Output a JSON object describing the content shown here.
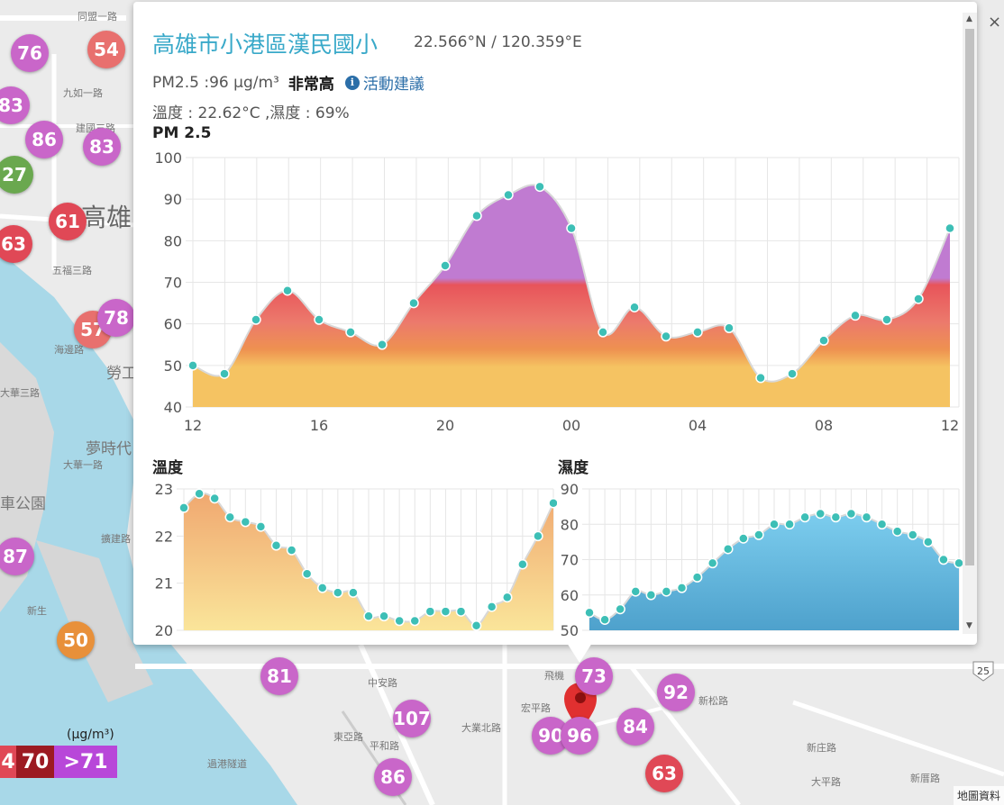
{
  "popup": {
    "station_name": "高雄市小港區漢民國小",
    "coords": "22.566°N / 120.359°E",
    "pm_text": "PM2.5 :96 μg/m³",
    "level": "非常高",
    "info_icon": "info-icon",
    "advice": "活動建議",
    "weather_text": "溫度 : 22.62°C ,濕度 : 69%",
    "close_label": "×"
  },
  "colors": {
    "accent": "#39a9c9",
    "link": "#2b6ea8",
    "pm_low": "#f5c362",
    "pm_mid": "#e8545a",
    "pm_high": "#c07bd1",
    "temp_fill": "#f0b56a",
    "humid_fill": "#5ab0db",
    "point": "#3dbfb6"
  },
  "chart_data": [
    {
      "type": "area",
      "title": "PM 2.5",
      "xlabel": "",
      "ylabel": "",
      "x_tick_labels": [
        "12",
        "16",
        "20",
        "00",
        "04",
        "08",
        "12"
      ],
      "ylim": [
        40,
        100
      ],
      "y_ticks": [
        40,
        50,
        60,
        70,
        80,
        90,
        100
      ],
      "grid": true,
      "x": [
        0,
        1,
        2,
        3,
        4,
        5,
        6,
        7,
        8,
        9,
        10,
        11,
        12,
        13,
        14,
        15,
        16,
        17,
        18,
        19,
        20,
        21,
        22,
        23,
        24
      ],
      "values": [
        50,
        48,
        61,
        68,
        61,
        58,
        55,
        65,
        74,
        86,
        91,
        93,
        83,
        58,
        64,
        57,
        58,
        59,
        47,
        48,
        56,
        62,
        61,
        66,
        83
      ]
    },
    {
      "type": "area",
      "title": "溫度",
      "ylim": [
        20,
        23
      ],
      "y_ticks": [
        20,
        21,
        22,
        23
      ],
      "grid": true,
      "x": [
        0,
        1,
        2,
        3,
        4,
        5,
        6,
        7,
        8,
        9,
        10,
        11,
        12,
        13,
        14,
        15,
        16,
        17,
        18,
        19,
        20,
        21,
        22,
        23,
        24
      ],
      "values": [
        22.6,
        22.9,
        22.8,
        22.4,
        22.3,
        22.2,
        21.8,
        21.7,
        21.2,
        20.9,
        20.8,
        20.8,
        20.3,
        20.3,
        20.2,
        20.2,
        20.4,
        20.4,
        20.4,
        20.1,
        20.5,
        20.7,
        21.4,
        22.0,
        22.7
      ]
    },
    {
      "type": "area",
      "title": "濕度",
      "ylim": [
        50,
        90
      ],
      "y_ticks": [
        50,
        60,
        70,
        80,
        90
      ],
      "grid": true,
      "x": [
        0,
        1,
        2,
        3,
        4,
        5,
        6,
        7,
        8,
        9,
        10,
        11,
        12,
        13,
        14,
        15,
        16,
        17,
        18,
        19,
        20,
        21,
        22,
        23,
        24
      ],
      "values": [
        55,
        53,
        56,
        61,
        60,
        61,
        62,
        65,
        69,
        73,
        76,
        77,
        80,
        80,
        82,
        83,
        82,
        83,
        82,
        80,
        78,
        77,
        75,
        70,
        69
      ]
    }
  ],
  "map": {
    "markers": [
      {
        "value": "76",
        "color": "#c966c9"
      },
      {
        "value": "54",
        "color": "#e8706e"
      },
      {
        "value": "83",
        "color": "#c966c9"
      },
      {
        "value": "86",
        "color": "#c966c9"
      },
      {
        "value": "83",
        "color": "#c966c9"
      },
      {
        "value": "27",
        "color": "#6aa84f"
      },
      {
        "value": "61",
        "color": "#e04856"
      },
      {
        "value": "63",
        "color": "#e04856"
      },
      {
        "value": "57",
        "color": "#e8706e"
      },
      {
        "value": "78",
        "color": "#c966c9"
      },
      {
        "value": "87",
        "color": "#c966c9"
      },
      {
        "value": "50",
        "color": "#e8903a"
      },
      {
        "value": "81",
        "color": "#c966c9"
      },
      {
        "value": "107",
        "color": "#c966c9"
      },
      {
        "value": "86",
        "color": "#c966c9"
      },
      {
        "value": "73",
        "color": "#c966c9"
      },
      {
        "value": "92",
        "color": "#c966c9"
      },
      {
        "value": "90",
        "color": "#c966c9"
      },
      {
        "value": "96",
        "color": "#c966c9"
      },
      {
        "value": "84",
        "color": "#c966c9"
      },
      {
        "value": "63",
        "color": "#e04856"
      }
    ],
    "labels": [
      "同盟一路",
      "九如一路",
      "建國三路",
      "五福三路",
      "海邊路",
      "大華三路",
      "勞工",
      "夢時代",
      "大華一路",
      "車公園",
      "擴建路",
      "新生",
      "中安路",
      "東亞路",
      "平和路",
      "宏平路",
      "飛機",
      "新松路",
      "新庄路",
      "大平路",
      "新厝路",
      "大業北路",
      "過港隧道",
      "高雄"
    ],
    "pin_icon": "location-pin-icon",
    "highway": "25",
    "attribution": "地圖資料"
  },
  "legend": {
    "unit": "(μg/m³)",
    "items": [
      {
        "label": "4",
        "color": "#e04856"
      },
      {
        "label": "70",
        "color": "#9c1a22"
      },
      {
        "label": ">71",
        "color": "#b847d9"
      }
    ]
  }
}
